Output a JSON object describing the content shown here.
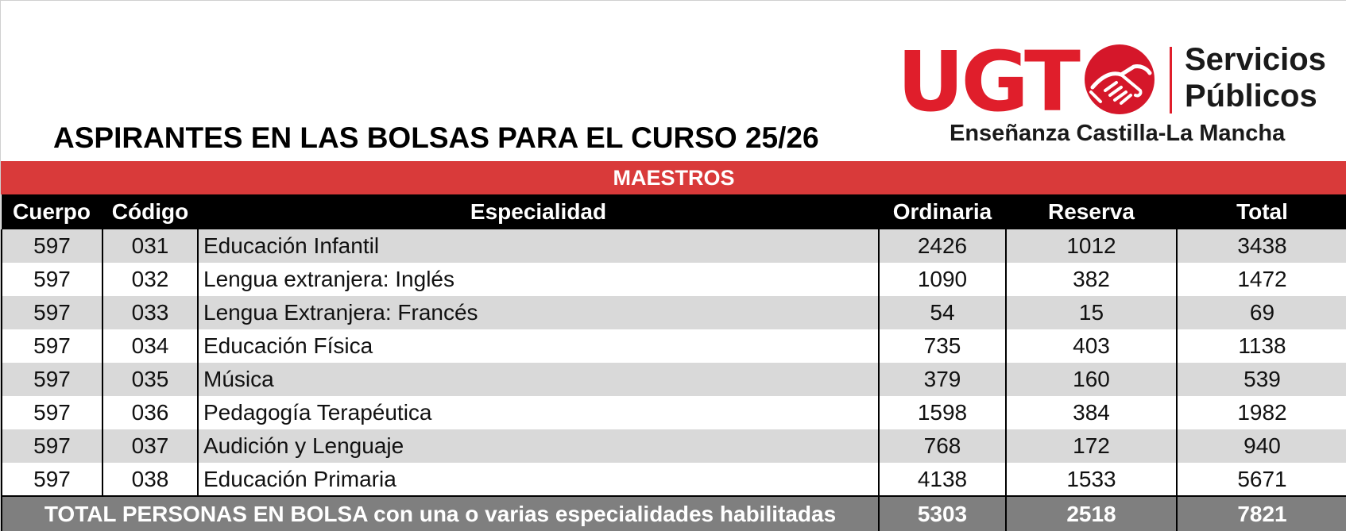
{
  "title": "ASPIRANTES EN LAS BOLSAS PARA EL CURSO 25/26",
  "logo": {
    "brand": "UGT",
    "line1": "Servicios",
    "line2": "Públicos",
    "subtitle": "Enseñanza Castilla-La Mancha",
    "icon": "handshake-icon",
    "brand_color": "#e01e2b"
  },
  "section": "MAESTROS",
  "colors": {
    "section_bar": "#d93a3a",
    "header_bg": "#000000",
    "row_alt": "#d9d9d9",
    "total_bg": "#7f7f7f"
  },
  "headers": [
    "Cuerpo",
    "Código",
    "Especialidad",
    "Ordinaria",
    "Reserva",
    "Total"
  ],
  "rows": [
    {
      "cuerpo": "597",
      "codigo": "031",
      "especialidad": "Educación Infantil",
      "ordinaria": "2426",
      "reserva": "1012",
      "total": "3438"
    },
    {
      "cuerpo": "597",
      "codigo": "032",
      "especialidad": "Lengua extranjera: Inglés",
      "ordinaria": "1090",
      "reserva": "382",
      "total": "1472"
    },
    {
      "cuerpo": "597",
      "codigo": "033",
      "especialidad": "Lengua Extranjera: Francés",
      "ordinaria": "54",
      "reserva": "15",
      "total": "69"
    },
    {
      "cuerpo": "597",
      "codigo": "034",
      "especialidad": "Educación Física",
      "ordinaria": "735",
      "reserva": "403",
      "total": "1138"
    },
    {
      "cuerpo": "597",
      "codigo": "035",
      "especialidad": "Música",
      "ordinaria": "379",
      "reserva": "160",
      "total": "539"
    },
    {
      "cuerpo": "597",
      "codigo": "036",
      "especialidad": "Pedagogía Terapéutica",
      "ordinaria": "1598",
      "reserva": "384",
      "total": "1982"
    },
    {
      "cuerpo": "597",
      "codigo": "037",
      "especialidad": "Audición y Lenguaje",
      "ordinaria": "768",
      "reserva": "172",
      "total": "940"
    },
    {
      "cuerpo": "597",
      "codigo": "038",
      "especialidad": "Educación Primaria",
      "ordinaria": "4138",
      "reserva": "1533",
      "total": "5671"
    }
  ],
  "totals": {
    "label": "TOTAL PERSONAS EN BOLSA con una o varias especialidades habilitadas",
    "ordinaria": "5303",
    "reserva": "2518",
    "total": "7821"
  }
}
